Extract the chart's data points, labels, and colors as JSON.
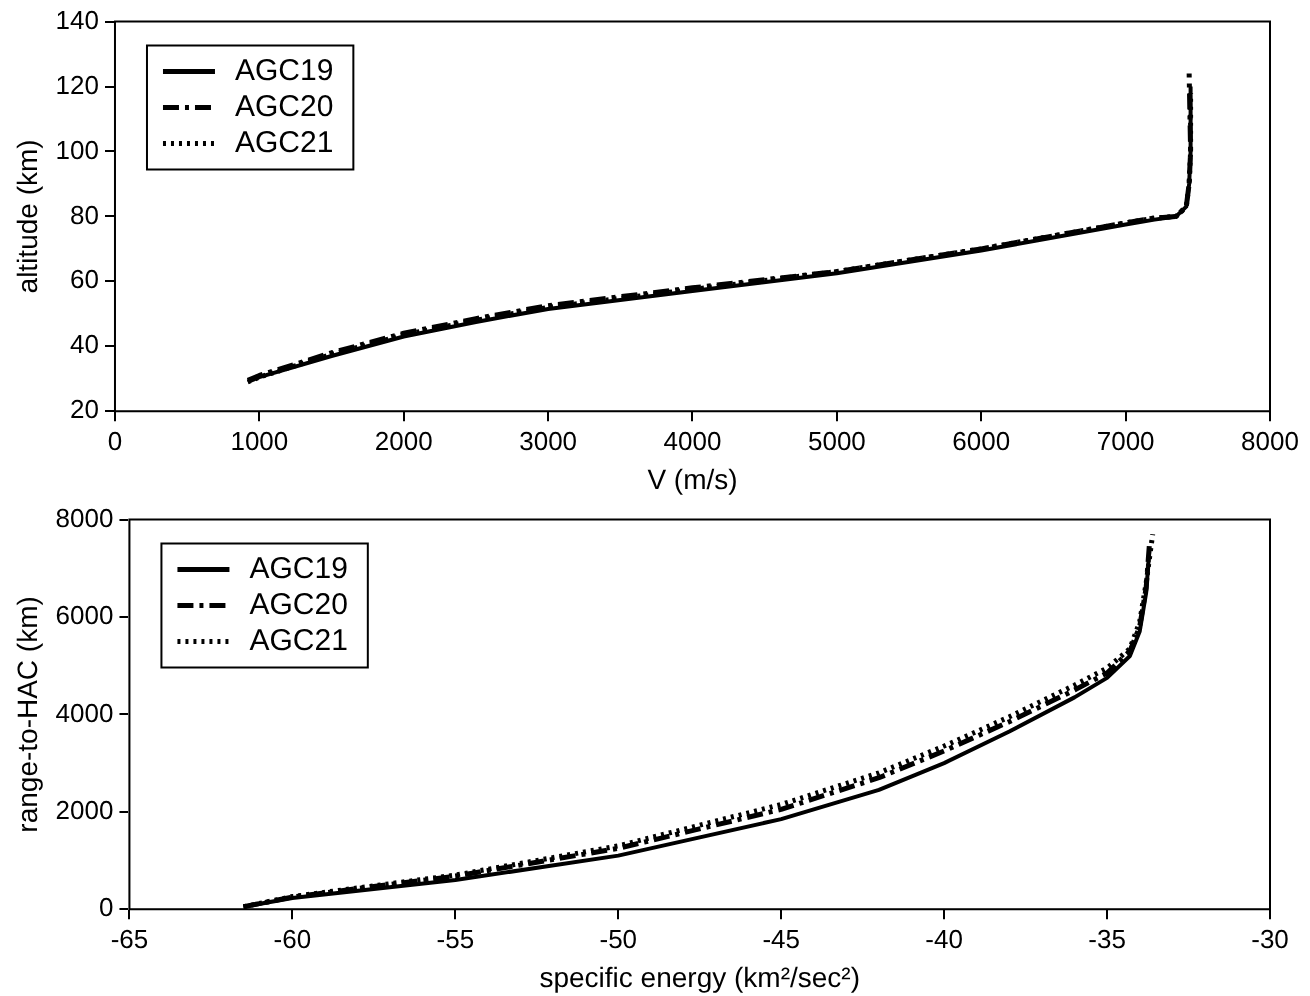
{
  "chart_data": [
    {
      "type": "line",
      "xlabel": "V (m/s)",
      "ylabel": "altitude (km)",
      "xlim": [
        0,
        8000
      ],
      "xticks": [
        0,
        1000,
        2000,
        3000,
        4000,
        5000,
        6000,
        7000,
        8000
      ],
      "ylim": [
        20,
        140
      ],
      "yticks": [
        20,
        40,
        60,
        80,
        100,
        120,
        140
      ],
      "grid": false,
      "legend": "top left",
      "marker": "none",
      "series": [
        {
          "name": "AGC19",
          "color": "#000000",
          "line_style": "solid",
          "x": [
            920,
            1000,
            1500,
            2000,
            2500,
            3000,
            4000,
            5000,
            6000,
            7000,
            7200,
            7350,
            7420,
            7440,
            7450,
            7450
          ],
          "values": [
            29,
            30.5,
            37,
            43,
            47.5,
            51.5,
            57,
            62.5,
            69.5,
            77.5,
            79,
            80,
            83,
            90,
            100,
            120
          ]
        },
        {
          "name": "AGC20",
          "color": "#000000",
          "line_style": "dashed",
          "x": [
            920,
            1000,
            1500,
            2000,
            2500,
            3000,
            4000,
            5000,
            6000,
            7000,
            7200,
            7350,
            7420,
            7440,
            7450,
            7440
          ],
          "values": [
            29.5,
            31,
            38,
            44,
            48.5,
            52.5,
            58,
            63,
            70,
            78,
            79.5,
            80,
            83,
            90,
            100,
            124
          ]
        },
        {
          "name": "AGC21",
          "color": "#000000",
          "line_style": "dotted",
          "x": [
            920,
            1000,
            1500,
            2000,
            2500,
            3000,
            4000,
            5000,
            6000,
            7000,
            7200,
            7350,
            7420,
            7440,
            7450,
            7450
          ],
          "values": [
            29,
            30.5,
            37.5,
            43.5,
            48,
            52,
            57.5,
            63,
            70,
            78,
            79.5,
            80,
            83,
            90,
            100,
            118
          ]
        }
      ]
    },
    {
      "type": "line",
      "xlabel": "specific energy (km²/sec²)",
      "ylabel": "range-to-HAC (km)",
      "xlim": [
        -65,
        -30
      ],
      "xticks": [
        -65,
        -60,
        -55,
        -50,
        -45,
        -40,
        -35,
        -30
      ],
      "ylim": [
        0,
        8000
      ],
      "yticks": [
        0,
        2000,
        4000,
        6000,
        8000
      ],
      "grid": false,
      "legend": "top left",
      "marker": "none",
      "series": [
        {
          "name": "AGC19",
          "color": "#000000",
          "line_style": "solid",
          "x": [
            -61.5,
            -60,
            -55,
            -50,
            -45,
            -42,
            -40,
            -38,
            -36,
            -35,
            -34.3,
            -34,
            -33.8,
            -33.7
          ],
          "values": [
            50,
            230,
            600,
            1100,
            1850,
            2450,
            3000,
            3650,
            4350,
            4750,
            5200,
            5700,
            6500,
            7400
          ]
        },
        {
          "name": "AGC20",
          "color": "#000000",
          "line_style": "dashed",
          "x": [
            -61.5,
            -60,
            -55,
            -50,
            -45,
            -42,
            -40,
            -38,
            -36,
            -35,
            -34.3,
            -34,
            -33.8,
            -33.7
          ],
          "values": [
            50,
            250,
            680,
            1250,
            2050,
            2700,
            3250,
            3850,
            4500,
            4850,
            5300,
            5800,
            6600,
            7500
          ]
        },
        {
          "name": "AGC21",
          "color": "#000000",
          "line_style": "dotted",
          "x": [
            -61.5,
            -60,
            -55,
            -50,
            -45,
            -42,
            -40,
            -38,
            -36,
            -35,
            -34.3,
            -34,
            -33.8,
            -33.6
          ],
          "values": [
            50,
            260,
            700,
            1300,
            2150,
            2800,
            3350,
            3950,
            4600,
            4950,
            5350,
            5900,
            6700,
            7700
          ]
        }
      ]
    }
  ]
}
